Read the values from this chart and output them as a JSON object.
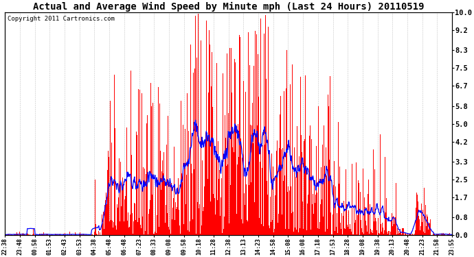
{
  "title": "Actual and Average Wind Speed by Minute mph (Last 24 Hours) 20110519",
  "copyright": "Copyright 2011 Cartronics.com",
  "yticks": [
    0.0,
    0.8,
    1.7,
    2.5,
    3.3,
    4.2,
    5.0,
    5.8,
    6.7,
    7.5,
    8.3,
    9.2,
    10.0
  ],
  "ylim": [
    0.0,
    10.5
  ],
  "ymax": 10.0,
  "bar_color": "#ff0000",
  "line_color": "#0000ff",
  "bg_color": "#ffffff",
  "grid_color": "#bbbbbb",
  "title_fontsize": 10,
  "copyright_fontsize": 6.5,
  "xtick_labels": [
    "22:38",
    "23:48",
    "00:58",
    "01:53",
    "02:43",
    "03:53",
    "04:38",
    "05:48",
    "06:48",
    "07:23",
    "08:33",
    "09:08",
    "09:58",
    "10:18",
    "11:28",
    "12:38",
    "13:13",
    "14:23",
    "14:58",
    "15:08",
    "16:08",
    "17:18",
    "17:53",
    "18:28",
    "19:08",
    "19:38",
    "20:13",
    "20:48",
    "21:23",
    "21:58",
    "23:55"
  ],
  "figsize": [
    6.9,
    3.75
  ],
  "dpi": 100
}
